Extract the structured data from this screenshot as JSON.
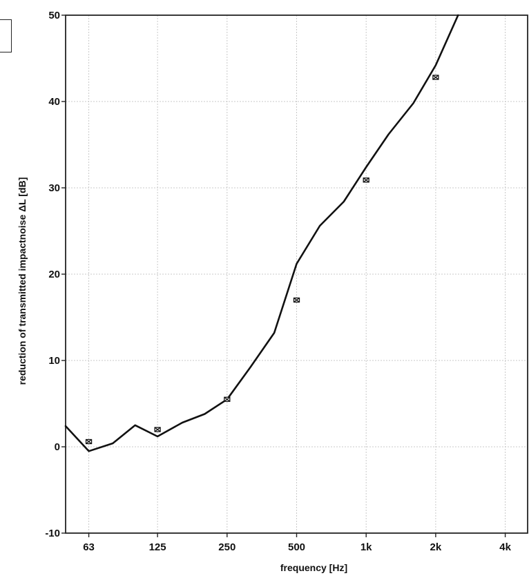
{
  "chart_data": {
    "type": "line",
    "xscale": "log",
    "xlabel": "frequency [Hz]",
    "ylabel": "reduction of transmitted impactnoise ΔL [dB]",
    "xlim": [
      50,
      5000
    ],
    "ylim": [
      -10,
      50
    ],
    "grid": true,
    "x_ticks": [
      {
        "value": 63,
        "label": "63"
      },
      {
        "value": 125,
        "label": "125"
      },
      {
        "value": 250,
        "label": "250"
      },
      {
        "value": 500,
        "label": "500"
      },
      {
        "value": 1000,
        "label": "1k"
      },
      {
        "value": 2000,
        "label": "2k"
      },
      {
        "value": 4000,
        "label": "4k"
      }
    ],
    "y_ticks": [
      -10,
      0,
      10,
      20,
      30,
      40,
      50
    ],
    "series": [
      {
        "kind": "line",
        "color": "#111111",
        "points": [
          [
            50,
            2.4
          ],
          [
            63,
            -0.5
          ],
          [
            80,
            0.4
          ],
          [
            100,
            2.5
          ],
          [
            125,
            1.2
          ],
          [
            160,
            2.8
          ],
          [
            200,
            3.8
          ],
          [
            250,
            5.5
          ],
          [
            315,
            9.2
          ],
          [
            400,
            13.2
          ],
          [
            500,
            21.2
          ],
          [
            630,
            25.6
          ],
          [
            800,
            28.4
          ],
          [
            1000,
            32.4
          ],
          [
            1250,
            36.2
          ],
          [
            1600,
            39.8
          ],
          [
            2000,
            44.2
          ],
          [
            2500,
            50.0
          ]
        ]
      },
      {
        "kind": "marker",
        "color": "#111111",
        "points": [
          [
            63,
            0.6
          ],
          [
            125,
            2.0
          ],
          [
            250,
            5.5
          ],
          [
            500,
            17.0
          ],
          [
            1000,
            30.9
          ],
          [
            2000,
            42.8
          ]
        ]
      }
    ]
  }
}
